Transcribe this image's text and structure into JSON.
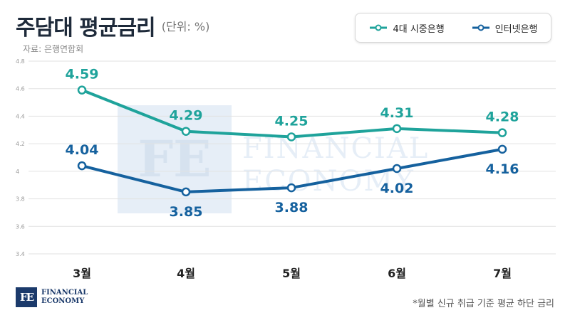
{
  "header": {
    "title": "주담대 평균금리",
    "unit": "(단위: %)"
  },
  "source": "자료: 은행연합회",
  "footnote": "*월별 신규 취급 기준 평균 하단 금리",
  "logo": {
    "mark": "FE",
    "line1": "FINANCIAL",
    "line2": "ECONOMY"
  },
  "watermark": {
    "line1": "FINANCIAL",
    "line2": "ECONOMY",
    "mark": "FE"
  },
  "colors": {
    "commercial": "#1fa39b",
    "internet": "#15619e",
    "watermark": "#e6eef7"
  },
  "chart_data": {
    "type": "line",
    "categories": [
      "3월",
      "4월",
      "5월",
      "6월",
      "7월"
    ],
    "series": [
      {
        "name": "4대 시중은행",
        "values": [
          4.59,
          4.29,
          4.25,
          4.31,
          4.28
        ],
        "labels": [
          "4.59",
          "4.29",
          "4.25",
          "4.31",
          "4.28"
        ],
        "label_position": "above"
      },
      {
        "name": "인터넷은행",
        "values": [
          4.04,
          3.85,
          3.88,
          4.02,
          4.16
        ],
        "labels": [
          "4.04",
          "3.85",
          "3.88",
          "4.02",
          "4.16"
        ],
        "label_position": [
          "above",
          "below",
          "below",
          "below",
          "below"
        ]
      }
    ],
    "ylim": [
      3.4,
      4.8
    ],
    "yticks": [
      3.4,
      3.6,
      3.8,
      4,
      4.2,
      4.4,
      4.6,
      4.8
    ],
    "grid": true,
    "legend": "top-right"
  }
}
